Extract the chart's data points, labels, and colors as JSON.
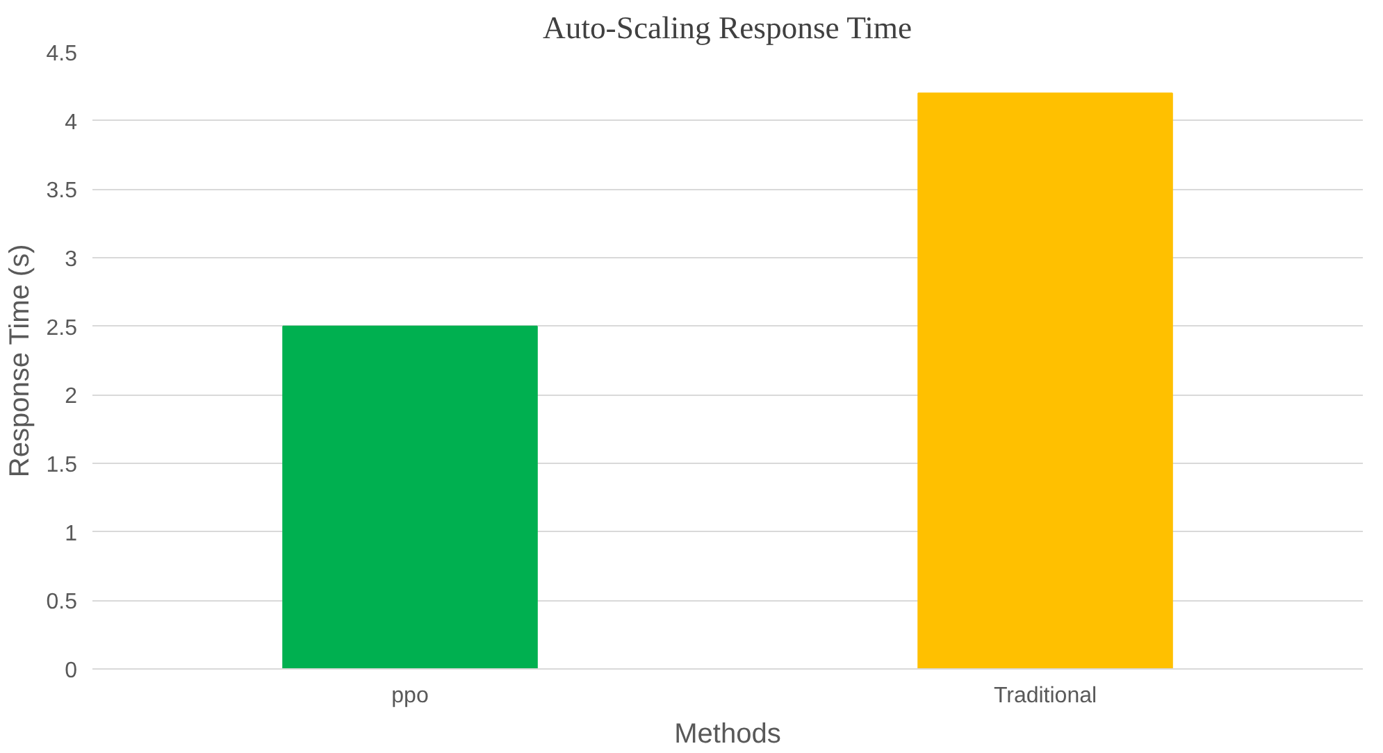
{
  "chart_data": {
    "type": "bar",
    "title": "Auto-Scaling Response Time",
    "xlabel": "Methods",
    "ylabel": "Response Time (s)",
    "categories": [
      "ppo",
      "Traditional"
    ],
    "values": [
      2.5,
      4.2
    ],
    "colors": [
      "#00b050",
      "#ffc000"
    ],
    "ylim": [
      0,
      4.5
    ],
    "yticks": [
      0,
      0.5,
      1,
      1.5,
      2,
      2.5,
      3,
      3.5,
      4,
      4.5
    ],
    "grid": "y"
  }
}
